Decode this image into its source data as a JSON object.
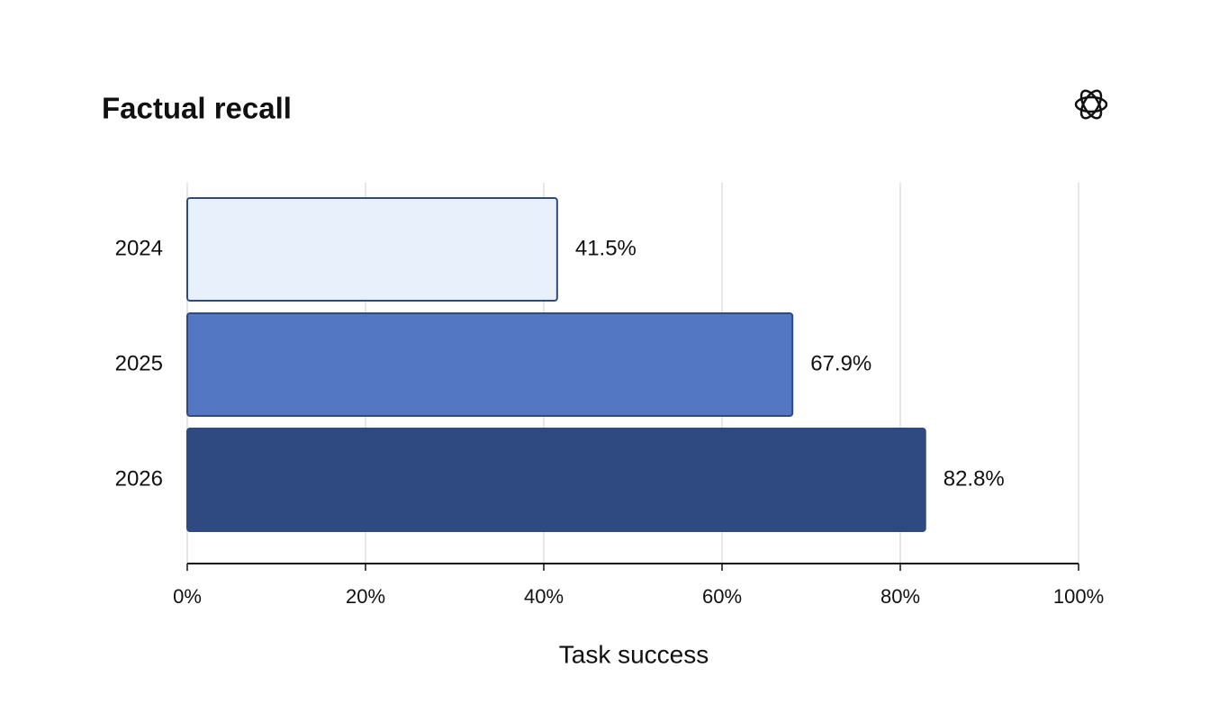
{
  "chart_data": {
    "type": "barh",
    "title": "Factual recall",
    "x_label": "Task success",
    "categories": [
      "2024",
      "2025",
      "2026"
    ],
    "values": [
      41.5,
      67.9,
      82.8
    ],
    "value_labels": [
      "41.5%",
      "67.9%",
      "82.8%"
    ],
    "colors": [
      "#e8f0fc",
      "#5477c4",
      "#2f4a80"
    ],
    "xlim": [
      0,
      100
    ],
    "xticks": [
      {
        "value": 0,
        "label": "0%"
      },
      {
        "value": 20,
        "label": "20%"
      },
      {
        "value": 40,
        "label": "40%"
      },
      {
        "value": 60,
        "label": "60%"
      },
      {
        "value": 80,
        "label": "80%"
      },
      {
        "value": 100,
        "label": "100%"
      }
    ],
    "grid": true
  }
}
